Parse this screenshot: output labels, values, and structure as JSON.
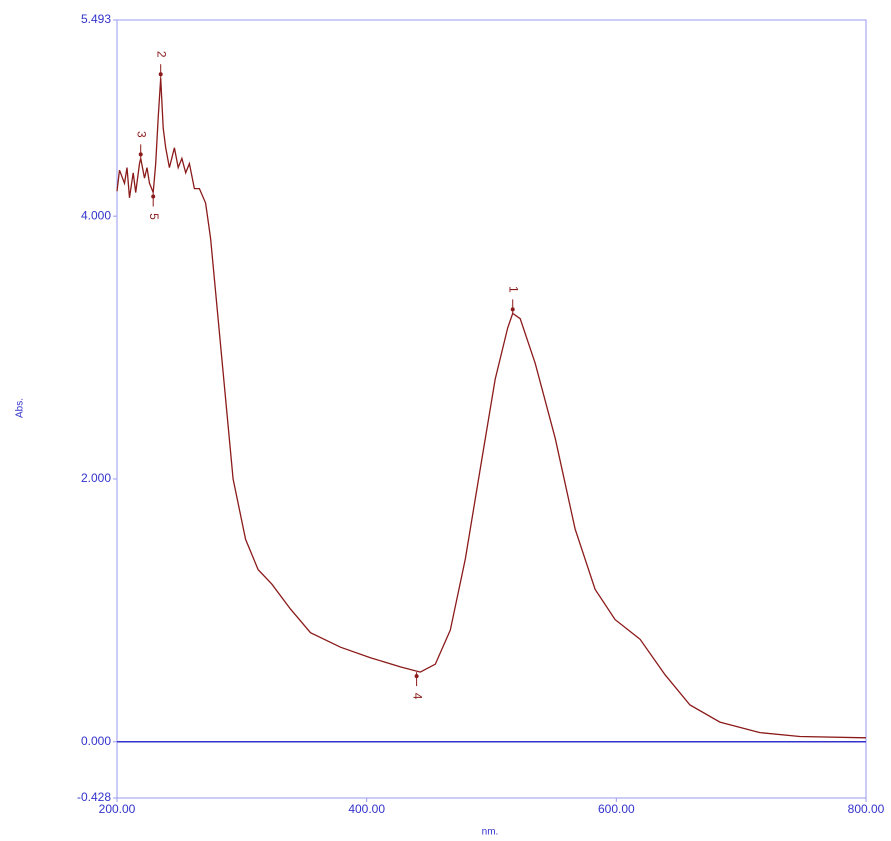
{
  "chart_data": {
    "type": "line",
    "x_label": "nm.",
    "y_label": "Abs.",
    "xlim": [
      200,
      800
    ],
    "ylim": [
      -0.428,
      5.493
    ],
    "xticks": [
      {
        "value": 200,
        "label": "200.00"
      },
      {
        "value": 400,
        "label": "400.00"
      },
      {
        "value": 600,
        "label": "600.00"
      },
      {
        "value": 800,
        "label": "800.00"
      }
    ],
    "yticks": [
      -0.428,
      {
        "value": 0,
        "label": "0.000"
      },
      {
        "value": 2,
        "label": "2.000"
      },
      {
        "value": 4,
        "label": "4.000"
      },
      5.493
    ],
    "zero_line": true,
    "series": [
      {
        "color": "#8b1a1a",
        "x": [
          200,
          202,
          206,
          208,
          210,
          213,
          215,
          218,
          219,
          222,
          224,
          226,
          229,
          231,
          233,
          235,
          237,
          239,
          242,
          246,
          249,
          252,
          255,
          258,
          262,
          266,
          271,
          275,
          281,
          287,
          293,
          303,
          313,
          324,
          339,
          355,
          379,
          403,
          427,
          443,
          455,
          467,
          479,
          491,
          503,
          513,
          517,
          523,
          535,
          551,
          567,
          583,
          599,
          619,
          639,
          659,
          683,
          715,
          747,
          800
        ],
        "values": [
          4.19,
          4.35,
          4.25,
          4.37,
          4.14,
          4.33,
          4.18,
          4.4,
          4.44,
          4.29,
          4.37,
          4.25,
          4.18,
          4.4,
          4.75,
          5.05,
          4.67,
          4.52,
          4.37,
          4.52,
          4.37,
          4.44,
          4.33,
          4.4,
          4.21,
          4.21,
          4.1,
          3.83,
          3.22,
          2.61,
          2.0,
          1.54,
          1.31,
          1.2,
          1.01,
          0.83,
          0.72,
          0.64,
          0.57,
          0.53,
          0.59,
          0.85,
          1.39,
          2.08,
          2.76,
          3.15,
          3.26,
          3.22,
          2.88,
          2.31,
          1.62,
          1.16,
          0.93,
          0.78,
          0.51,
          0.28,
          0.15,
          0.07,
          0.04,
          0.03
        ]
      }
    ],
    "annotations": [
      {
        "label": "1",
        "x": 517,
        "y": 3.26,
        "side": "above"
      },
      {
        "label": "2",
        "x": 235,
        "y": 5.05,
        "side": "above"
      },
      {
        "label": "3",
        "x": 219,
        "y": 4.44,
        "side": "above"
      },
      {
        "label": "4",
        "x": 440,
        "y": 0.53,
        "side": "below"
      },
      {
        "label": "5",
        "x": 229,
        "y": 4.18,
        "side": "below"
      }
    ]
  }
}
